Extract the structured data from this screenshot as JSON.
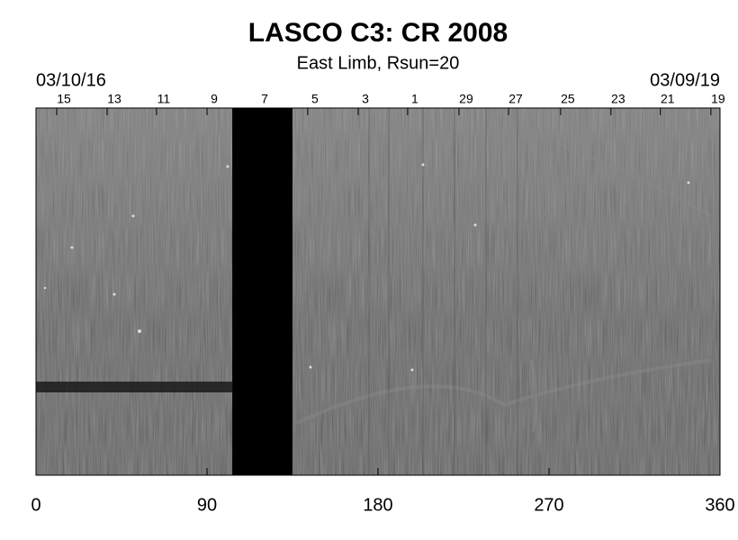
{
  "chart_data": {
    "type": "synoptic-map",
    "title": "LASCO C3: CR 2008",
    "subtitle": "East Limb, Rsun=20",
    "start_date": "03/10/16",
    "end_date": "03/09/19",
    "xlim": [
      0,
      360
    ],
    "xticks": [
      0,
      90,
      180,
      270,
      360
    ],
    "top_ticks": [
      {
        "value": 14.7,
        "label": "15"
      },
      {
        "value": 41.2,
        "label": "13"
      },
      {
        "value": 67.2,
        "label": "11"
      },
      {
        "value": 93.8,
        "label": "9"
      },
      {
        "value": 120.3,
        "label": "7"
      },
      {
        "value": 146.8,
        "label": "5"
      },
      {
        "value": 173.4,
        "label": "3"
      },
      {
        "value": 199.4,
        "label": "1"
      },
      {
        "value": 226.4,
        "label": "29"
      },
      {
        "value": 252.5,
        "label": "27"
      },
      {
        "value": 279.9,
        "label": "25"
      },
      {
        "value": 306.4,
        "label": "23"
      },
      {
        "value": 332.4,
        "label": "21"
      },
      {
        "value": 359,
        "label": "19"
      }
    ],
    "gaps": [
      [
        103.3,
        135
      ]
    ]
  }
}
